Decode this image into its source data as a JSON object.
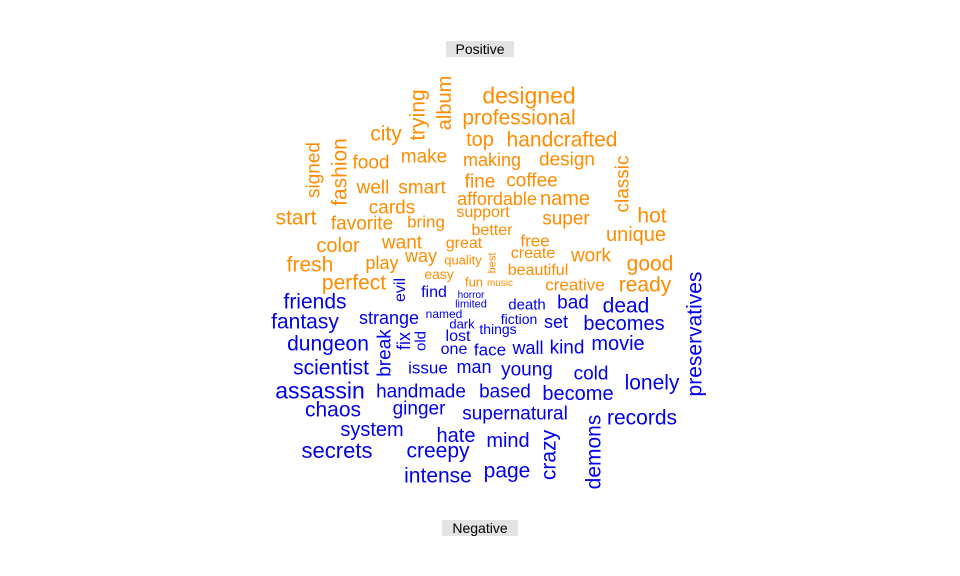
{
  "groups": {
    "positive": {
      "label": "Positive",
      "color": "#FF8C00"
    },
    "negative": {
      "label": "Negative",
      "color": "#0000EE"
    }
  },
  "positive_words": [
    "designed",
    "album",
    "trying",
    "professional",
    "city",
    "top",
    "handcrafted",
    "signed",
    "fashion",
    "food",
    "make",
    "making",
    "design",
    "classic",
    "well",
    "smart",
    "fine",
    "coffee",
    "affordable",
    "name",
    "cards",
    "start",
    "favorite",
    "bring",
    "support",
    "super",
    "hot",
    "better",
    "free",
    "unique",
    "color",
    "want",
    "great",
    "best",
    "way",
    "quality",
    "work",
    "fresh",
    "play",
    "create",
    "good",
    "easy",
    "beautiful",
    "perfect",
    "fun",
    "music",
    "creative",
    "ready"
  ],
  "negative_words": [
    "preservatives",
    "friends",
    "evil",
    "find",
    "horror",
    "limited",
    "death",
    "bad",
    "dead",
    "fantasy",
    "strange",
    "named",
    "fiction",
    "set",
    "becomes",
    "dark",
    "things",
    "break",
    "fix",
    "lost",
    "dungeon",
    "old",
    "one",
    "face",
    "wall",
    "kind",
    "movie",
    "scientist",
    "issue",
    "man",
    "young",
    "cold",
    "lonely",
    "assassin",
    "handmade",
    "based",
    "become",
    "chaos",
    "ginger",
    "supernatural",
    "records",
    "system",
    "hate",
    "mind",
    "crazy",
    "demons",
    "secrets",
    "creepy",
    "intense",
    "page"
  ]
}
